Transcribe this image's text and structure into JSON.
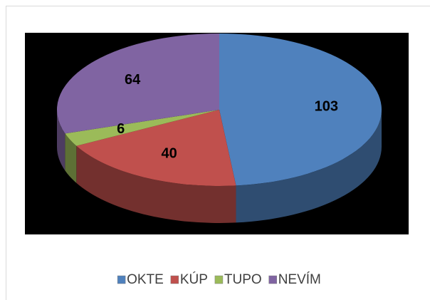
{
  "chart_data": {
    "type": "pie",
    "categories": [
      "OKTE",
      "KÚP",
      "TUPO",
      "NEVÍM"
    ],
    "values": [
      103,
      40,
      6,
      64
    ],
    "colors": [
      "#4f81bd",
      "#c0504d",
      "#9bbb59",
      "#8064a2"
    ],
    "legend": "bottom"
  }
}
